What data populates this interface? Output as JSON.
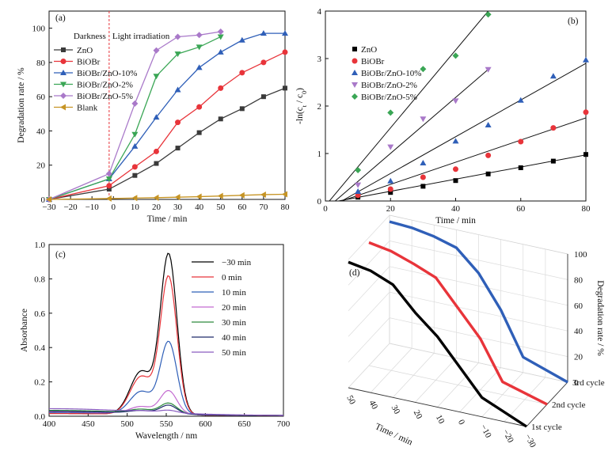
{
  "chart_data": [
    {
      "panel_label": "(a)",
      "type": "line",
      "xlabel": "Time / min",
      "ylabel": "Degradation rate / %",
      "xlim": [
        -30,
        80
      ],
      "ylim": [
        0,
        110
      ],
      "xticks": [
        "−30",
        "−20",
        "−10",
        "0",
        "10",
        "20",
        "30",
        "40",
        "50",
        "60",
        "70",
        "80"
      ],
      "yticks": [
        "0",
        "20",
        "40",
        "60",
        "80",
        "100"
      ],
      "annotations": [
        "Darkness",
        "Light irradiation"
      ],
      "legend_position": "top-left",
      "series": [
        {
          "name": "ZnO",
          "color": "#3a3a3a",
          "marker": "square",
          "x": [
            -30,
            -2,
            10,
            20,
            30,
            40,
            50,
            60,
            70,
            80
          ],
          "y": [
            0,
            6,
            14,
            21,
            30,
            39,
            47,
            53,
            60,
            65
          ]
        },
        {
          "name": "BiOBr",
          "color": "#e8343a",
          "marker": "circle",
          "x": [
            -30,
            -2,
            10,
            20,
            30,
            40,
            50,
            60,
            70,
            80
          ],
          "y": [
            0,
            8,
            19,
            28,
            45,
            54,
            65,
            74,
            80,
            86
          ]
        },
        {
          "name": "BiOBr/ZnO-10%",
          "color": "#2f5fb8",
          "marker": "triangle-up",
          "x": [
            -30,
            -2,
            10,
            20,
            30,
            40,
            50,
            60,
            70,
            80
          ],
          "y": [
            0,
            12,
            31,
            48,
            64,
            77,
            86,
            93,
            97,
            97
          ]
        },
        {
          "name": "BiOBr/ZnO-2%",
          "color": "#3aa655",
          "marker": "triangle-down",
          "x": [
            -30,
            -2,
            10,
            20,
            30,
            40,
            50
          ],
          "y": [
            0,
            12,
            38,
            72,
            85,
            89,
            95
          ]
        },
        {
          "name": "BiOBr/ZnO-5%",
          "color": "#a979c9",
          "marker": "diamond",
          "x": [
            -30,
            -2,
            10,
            20,
            30,
            40,
            50
          ],
          "y": [
            0,
            15,
            56,
            87,
            95,
            96,
            98
          ]
        },
        {
          "name": "Blank",
          "color": "#c69424",
          "marker": "triangle-left",
          "x": [
            -30,
            -2,
            10,
            20,
            30,
            40,
            50,
            60,
            70,
            80
          ],
          "y": [
            0,
            0.5,
            0.8,
            1.0,
            1.3,
            1.6,
            2.0,
            2.4,
            2.8,
            3.0
          ]
        }
      ]
    },
    {
      "panel_label": "(b)",
      "type": "scatter",
      "xlabel": "Time / min",
      "ylabel_parts": [
        "-ln(c",
        "t",
        " / c",
        "0",
        ")"
      ],
      "xlim": [
        0,
        80
      ],
      "ylim": [
        0,
        4
      ],
      "xticks": [
        "0",
        "20",
        "40",
        "60",
        "80"
      ],
      "yticks": [
        "0",
        "1",
        "2",
        "3",
        "4"
      ],
      "legend_position": "top-left",
      "series": [
        {
          "name": "ZnO",
          "color": "#000000",
          "marker": "square",
          "x": [
            10,
            20,
            30,
            40,
            50,
            60,
            70,
            80
          ],
          "y": [
            0.08,
            0.18,
            0.31,
            0.43,
            0.57,
            0.7,
            0.84,
            0.98
          ],
          "fit": {
            "x": [
              4,
              80
            ],
            "y": [
              0,
              0.97
            ]
          }
        },
        {
          "name": "BiOBr",
          "color": "#e8343a",
          "marker": "circle",
          "x": [
            10,
            20,
            30,
            40,
            50,
            60,
            70,
            80
          ],
          "y": [
            0.12,
            0.25,
            0.5,
            0.67,
            0.96,
            1.25,
            1.54,
            1.87
          ],
          "fit": {
            "x": [
              5,
              80
            ],
            "y": [
              0,
              1.75
            ]
          }
        },
        {
          "name": "BiOBr/ZnO-10%",
          "color": "#2f5fb8",
          "marker": "triangle-up",
          "x": [
            10,
            20,
            30,
            40,
            50,
            60,
            70,
            80
          ],
          "y": [
            0.2,
            0.42,
            0.8,
            1.26,
            1.6,
            2.12,
            2.63,
            2.97
          ],
          "fit": {
            "x": [
              5,
              80
            ],
            "y": [
              0,
              2.9
            ]
          }
        },
        {
          "name": "BiOBr/ZnO-2%",
          "color": "#a979c9",
          "marker": "triangle-down",
          "x": [
            10,
            20,
            30,
            40,
            50
          ],
          "y": [
            0.34,
            1.14,
            1.73,
            2.11,
            2.77
          ],
          "fit": {
            "x": [
              3,
              50
            ],
            "y": [
              0,
              2.77
            ]
          }
        },
        {
          "name": "BiOBr/ZnO-5%",
          "color": "#3aa655",
          "marker": "diamond",
          "x": [
            10,
            20,
            30,
            40,
            50
          ],
          "y": [
            0.65,
            1.86,
            2.78,
            3.06,
            3.93
          ],
          "fit": {
            "x": [
              0,
              50
            ],
            "y": [
              -0.1,
              4.0
            ]
          }
        }
      ]
    },
    {
      "panel_label": "(c)",
      "type": "line",
      "xlabel": "Wavelength / nm",
      "ylabel": "Absorbance",
      "xlim": [
        400,
        700
      ],
      "ylim": [
        0,
        1.0
      ],
      "xticks": [
        "400",
        "450",
        "500",
        "550",
        "600",
        "650",
        "700"
      ],
      "yticks": [
        "0.0",
        "0.2",
        "0.4",
        "0.6",
        "0.8",
        "1.0"
      ],
      "legend_position": "top-right",
      "series": [
        {
          "name": "−30 min",
          "color": "#000000",
          "base": 0.012,
          "peak": 0.93,
          "shoulder": 0.25
        },
        {
          "name": "0 min",
          "color": "#e8343a",
          "base": 0.012,
          "peak": 0.8,
          "shoulder": 0.22
        },
        {
          "name": "10 min",
          "color": "#2f5fb8",
          "base": 0.018,
          "peak": 0.42,
          "shoulder": 0.13
        },
        {
          "name": "20 min",
          "color": "#c36bd0",
          "base": 0.022,
          "peak": 0.135,
          "shoulder": 0.04
        },
        {
          "name": "30 min",
          "color": "#2e8b3e",
          "base": 0.03,
          "peak": 0.06,
          "shoulder": 0.02
        },
        {
          "name": "40 min",
          "color": "#1d2a6b",
          "base": 0.025,
          "peak": 0.05,
          "shoulder": 0.015
        },
        {
          "name": "50 min",
          "color": "#8a5cc0",
          "base": 0.04,
          "peak": 0.015,
          "shoulder": 0.006
        }
      ]
    },
    {
      "panel_label": "(d)",
      "type": "line",
      "xlabel": "Time / min",
      "ylabel": "Degradation rate / %",
      "xticks": [
        "50",
        "40",
        "30",
        "20",
        "10",
        "0",
        "−10",
        "−20",
        "−30"
      ],
      "zticks": [
        "0",
        "20",
        "40",
        "60",
        "80",
        "100"
      ],
      "cycle_labels": [
        "3rd cycle",
        "2nd cycle",
        "1st cycle"
      ],
      "series": [
        {
          "name": "1st cycle",
          "color": "#000000",
          "t": [
            50,
            40,
            30,
            20,
            10,
            0,
            -10,
            -30
          ],
          "rate": [
            98,
            95,
            88,
            70,
            55,
            35,
            15,
            0
          ]
        },
        {
          "name": "2nd cycle",
          "color": "#e8343a",
          "t": [
            50,
            40,
            30,
            20,
            10,
            0,
            -10,
            -30
          ],
          "rate": [
            96,
            93,
            87,
            80,
            60,
            40,
            10,
            0
          ]
        },
        {
          "name": "3rd cycle",
          "color": "#2f5fb8",
          "t": [
            50,
            40,
            30,
            20,
            10,
            0,
            -10,
            -30
          ],
          "rate": [
            95,
            94,
            91,
            86,
            70,
            45,
            12,
            0
          ]
        }
      ]
    }
  ]
}
